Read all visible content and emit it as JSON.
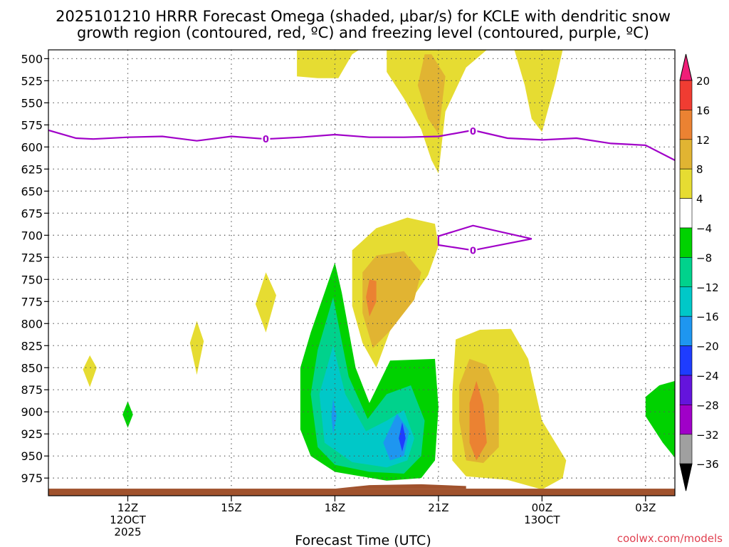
{
  "colors": {
    "freezing": "#a000c8",
    "ground": "#a0522d",
    "credit": "#e04050",
    "c_pos4": "#e6dc32",
    "c_pos8": "#e1b432",
    "c_pos12": "#eb8232",
    "c_neg4": "#00d200",
    "c_neg8": "#00d28c",
    "c_neg12": "#00c8c8",
    "c_neg16": "#1e96f0",
    "c_neg20": "#1e3cff"
  },
  "chart_data": {
    "type": "heatmap",
    "title_line1": "2025101210 HRRR Forecast Omega (shaded, μbar/s) for KCLE with dendritic snow",
    "title_line2": "growth region (contoured, red, ºC) and freezing level (contoured, purple, ºC)",
    "xlabel": "Forecast Time (UTC)",
    "ylabel": "",
    "x_range_hours": [
      9.7,
      27.85
    ],
    "y_range_mb": [
      490,
      995
    ],
    "y_ticks": [
      500,
      525,
      550,
      575,
      600,
      625,
      650,
      675,
      700,
      725,
      750,
      775,
      800,
      825,
      850,
      875,
      900,
      925,
      950,
      975
    ],
    "y_tick_labels": [
      "500",
      "525",
      "550",
      "575",
      "600",
      "625",
      "650",
      "675",
      "700",
      "725",
      "750",
      "775",
      "800",
      "825",
      "850",
      "875",
      "900",
      "925",
      "950",
      "975"
    ],
    "x_ticks": [
      {
        "hour": 12,
        "lines": [
          "12Z",
          "12OCT",
          "2025"
        ]
      },
      {
        "hour": 15,
        "lines": [
          "15Z"
        ]
      },
      {
        "hour": 18,
        "lines": [
          "18Z"
        ]
      },
      {
        "hour": 21,
        "lines": [
          "21Z"
        ]
      },
      {
        "hour": 24,
        "lines": [
          "00Z",
          "13OCT"
        ]
      },
      {
        "hour": 27,
        "lines": [
          "03Z"
        ]
      }
    ],
    "colorbar": {
      "levels": [
        20,
        16,
        12,
        8,
        4,
        -4,
        -8,
        -12,
        -16,
        -20,
        -24,
        -28,
        -32,
        -36
      ],
      "level_labels": [
        "20",
        "16",
        "12",
        "8",
        "4",
        "−4",
        "−8",
        "−12",
        "−16",
        "−20",
        "−24",
        "−28",
        "−32",
        "−36"
      ],
      "colors": [
        "#f01e78",
        "#f03c32",
        "#eb8232",
        "#e1b432",
        "#e6dc32",
        "#ffffff",
        "#00d200",
        "#00d28c",
        "#00c8c8",
        "#1e96f0",
        "#1e3cff",
        "#6414dc",
        "#a000c8",
        "#a0a0a0",
        "#000000"
      ]
    },
    "freezing_level": {
      "contour_value": "0",
      "units": "ºC",
      "line": [
        [
          9.7,
          581
        ],
        [
          10.5,
          590
        ],
        [
          11,
          591
        ],
        [
          12,
          589
        ],
        [
          13,
          588
        ],
        [
          14,
          593
        ],
        [
          15,
          588
        ],
        [
          16,
          591
        ],
        [
          17,
          589
        ],
        [
          18,
          586
        ],
        [
          19,
          589
        ],
        [
          20,
          589
        ],
        [
          21,
          588
        ],
        [
          22,
          581
        ],
        [
          23,
          590
        ],
        [
          24,
          592
        ],
        [
          25,
          590
        ],
        [
          26,
          596
        ],
        [
          27,
          598
        ],
        [
          27.85,
          615
        ]
      ],
      "labels": [
        [
          16,
          591
        ],
        [
          22,
          582
        ]
      ],
      "loop": [
        [
          21,
          701
        ],
        [
          22,
          689
        ],
        [
          23.7,
          704
        ],
        [
          22,
          717
        ],
        [
          21,
          711
        ]
      ],
      "loop_label": [
        22,
        717
      ]
    },
    "omega_regions": [
      {
        "value": 4,
        "points": [
          [
            16.9,
            490
          ],
          [
            18.7,
            490
          ],
          [
            18.5,
            495
          ],
          [
            18.1,
            522
          ],
          [
            17.5,
            522
          ],
          [
            16.9,
            520
          ]
        ]
      },
      {
        "value": 4,
        "points": [
          [
            19.5,
            490
          ],
          [
            20.3,
            490
          ],
          [
            20.9,
            490
          ],
          [
            21.7,
            490
          ],
          [
            22.4,
            490
          ],
          [
            21.8,
            510
          ],
          [
            21.2,
            560
          ],
          [
            21,
            630
          ],
          [
            20.8,
            615
          ],
          [
            20.5,
            580
          ],
          [
            20,
            545
          ],
          [
            19.5,
            515
          ]
        ]
      },
      {
        "value": 8,
        "points": [
          [
            20.6,
            495
          ],
          [
            20.8,
            495
          ],
          [
            21.2,
            520
          ],
          [
            21.0,
            585
          ],
          [
            20.7,
            568
          ],
          [
            20.4,
            530
          ]
        ]
      },
      {
        "value": 4,
        "points": [
          [
            23.2,
            490
          ],
          [
            24.6,
            490
          ],
          [
            24.4,
            525
          ],
          [
            24.0,
            583
          ],
          [
            23.7,
            568
          ],
          [
            23.5,
            530
          ]
        ]
      },
      {
        "value": 4,
        "points": [
          [
            19.2,
            692
          ],
          [
            20.1,
            680
          ],
          [
            20.9,
            687
          ],
          [
            21,
            712
          ],
          [
            20.7,
            745
          ],
          [
            19.6,
            808
          ],
          [
            19.2,
            850
          ],
          [
            18.8,
            822
          ],
          [
            18.5,
            780
          ],
          [
            18.5,
            717
          ]
        ]
      },
      {
        "value": 8,
        "points": [
          [
            19.2,
            723
          ],
          [
            20,
            718
          ],
          [
            20.5,
            742
          ],
          [
            20.3,
            773
          ],
          [
            19.6,
            808
          ],
          [
            19.1,
            828
          ],
          [
            18.8,
            788
          ],
          [
            18.8,
            742
          ]
        ]
      },
      {
        "value": 12,
        "points": [
          [
            19.0,
            750
          ],
          [
            19.2,
            752
          ],
          [
            19.2,
            775
          ],
          [
            19.0,
            792
          ],
          [
            18.9,
            770
          ]
        ]
      },
      {
        "value": 4,
        "points": [
          [
            16.0,
            742
          ],
          [
            16.3,
            768
          ],
          [
            16.0,
            810
          ],
          [
            15.7,
            778
          ]
        ]
      },
      {
        "value": 4,
        "points": [
          [
            14.0,
            797
          ],
          [
            14.2,
            820
          ],
          [
            14.0,
            858
          ],
          [
            13.8,
            822
          ]
        ]
      },
      {
        "value": 4,
        "points": [
          [
            10.9,
            836
          ],
          [
            11.1,
            850
          ],
          [
            10.9,
            872
          ],
          [
            10.7,
            852
          ]
        ]
      },
      {
        "value": -4,
        "points": [
          [
            12.0,
            888
          ],
          [
            12.15,
            903
          ],
          [
            12.0,
            918
          ],
          [
            11.85,
            903
          ]
        ]
      },
      {
        "value": -4,
        "points": [
          [
            18.0,
            731
          ],
          [
            18.2,
            765
          ],
          [
            18.6,
            850
          ],
          [
            19.0,
            890
          ],
          [
            19.6,
            842
          ],
          [
            20.9,
            840
          ],
          [
            21.0,
            895
          ],
          [
            20.9,
            955
          ],
          [
            20.5,
            975
          ],
          [
            19.5,
            978
          ],
          [
            18.0,
            968
          ],
          [
            17.3,
            950
          ],
          [
            17.0,
            920
          ],
          [
            17.0,
            850
          ],
          [
            17.3,
            810
          ],
          [
            17.7,
            765
          ]
        ]
      },
      {
        "value": -8,
        "points": [
          [
            17.95,
            770
          ],
          [
            18.4,
            860
          ],
          [
            18.95,
            908
          ],
          [
            19.5,
            880
          ],
          [
            20.2,
            870
          ],
          [
            20.6,
            910
          ],
          [
            20.5,
            950
          ],
          [
            20.0,
            970
          ],
          [
            19.0,
            968
          ],
          [
            18.0,
            960
          ],
          [
            17.5,
            940
          ],
          [
            17.3,
            880
          ],
          [
            17.5,
            830
          ]
        ]
      },
      {
        "value": -12,
        "points": [
          [
            17.95,
            825
          ],
          [
            18.3,
            880
          ],
          [
            18.9,
            922
          ],
          [
            19.5,
            910
          ],
          [
            20.0,
            898
          ],
          [
            20.3,
            930
          ],
          [
            20.1,
            955
          ],
          [
            19.5,
            963
          ],
          [
            18.5,
            957
          ],
          [
            17.7,
            935
          ],
          [
            17.55,
            880
          ]
        ]
      },
      {
        "value": -16,
        "points": [
          [
            17.95,
            885
          ],
          [
            18.05,
            905
          ],
          [
            17.95,
            925
          ],
          [
            17.9,
            905
          ]
        ]
      },
      {
        "value": -16,
        "points": [
          [
            19.8,
            902
          ],
          [
            20.15,
            922
          ],
          [
            20.0,
            950
          ],
          [
            19.6,
            955
          ],
          [
            19.4,
            935
          ]
        ]
      },
      {
        "value": -20,
        "points": [
          [
            19.95,
            912
          ],
          [
            20.05,
            930
          ],
          [
            19.95,
            945
          ],
          [
            19.85,
            930
          ]
        ]
      },
      {
        "value": 4,
        "points": [
          [
            21.5,
            818
          ],
          [
            22.2,
            807
          ],
          [
            23.1,
            806
          ],
          [
            23.6,
            840
          ],
          [
            24.0,
            910
          ],
          [
            24.7,
            955
          ],
          [
            24.6,
            975
          ],
          [
            24.0,
            988
          ],
          [
            23.0,
            977
          ],
          [
            21.8,
            973
          ],
          [
            21.4,
            955
          ],
          [
            21.4,
            880
          ]
        ]
      },
      {
        "value": 8,
        "points": [
          [
            21.9,
            840
          ],
          [
            22.4,
            847
          ],
          [
            22.75,
            880
          ],
          [
            22.75,
            940
          ],
          [
            22.3,
            958
          ],
          [
            21.8,
            955
          ],
          [
            21.6,
            910
          ],
          [
            21.6,
            870
          ]
        ]
      },
      {
        "value": 12,
        "points": [
          [
            22.1,
            865
          ],
          [
            22.3,
            892
          ],
          [
            22.4,
            935
          ],
          [
            22.1,
            955
          ],
          [
            21.9,
            935
          ],
          [
            21.9,
            890
          ]
        ]
      },
      {
        "value": -4,
        "points": [
          [
            27.85,
            865
          ],
          [
            27.4,
            870
          ],
          [
            27.0,
            883
          ],
          [
            27.0,
            905
          ],
          [
            27.5,
            935
          ],
          [
            27.85,
            952
          ]
        ]
      }
    ],
    "ground_band": [
      [
        9.7,
        987
      ],
      [
        27.85,
        995
      ]
    ],
    "ground_bump": [
      [
        18,
        987
      ],
      [
        19,
        983
      ],
      [
        20.5,
        982
      ],
      [
        21.8,
        984
      ],
      [
        21.8,
        987
      ]
    ]
  },
  "credit": "coolwx.com/models"
}
